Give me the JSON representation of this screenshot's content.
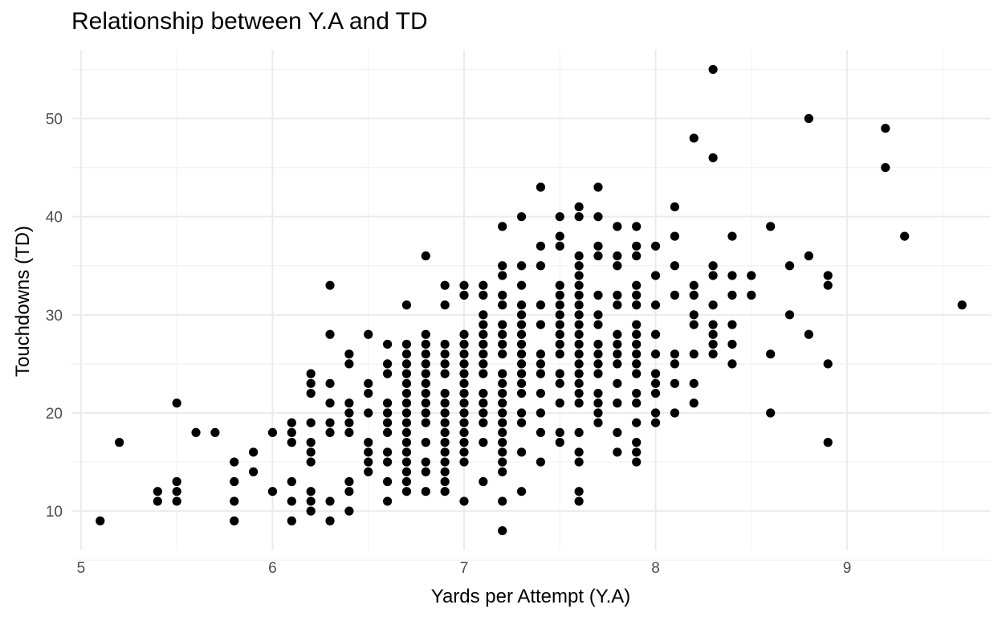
{
  "chart_data": {
    "type": "scatter",
    "title": "Relationship between Y.A and TD",
    "xlabel": "Yards per Attempt (Y.A)",
    "ylabel": "Touchdowns (TD)",
    "xlim": [
      4.95,
      9.75
    ],
    "ylim": [
      6.0,
      57.0
    ],
    "x_ticks": [
      5,
      6,
      7,
      8,
      9
    ],
    "y_ticks": [
      10,
      20,
      30,
      40,
      50
    ],
    "grid": true,
    "legend": "none",
    "points": [
      [
        5.1,
        9
      ],
      [
        5.2,
        17
      ],
      [
        5.4,
        11
      ],
      [
        5.4,
        12
      ],
      [
        5.5,
        11
      ],
      [
        5.5,
        12
      ],
      [
        5.5,
        13
      ],
      [
        5.5,
        21
      ],
      [
        5.6,
        18
      ],
      [
        5.7,
        18
      ],
      [
        5.8,
        9
      ],
      [
        5.8,
        11
      ],
      [
        5.8,
        13
      ],
      [
        5.8,
        15
      ],
      [
        5.9,
        14
      ],
      [
        5.9,
        16
      ],
      [
        6.0,
        12
      ],
      [
        6.0,
        18
      ],
      [
        6.1,
        9
      ],
      [
        6.1,
        11
      ],
      [
        6.1,
        13
      ],
      [
        6.1,
        17
      ],
      [
        6.1,
        18
      ],
      [
        6.1,
        19
      ],
      [
        6.2,
        10
      ],
      [
        6.2,
        11
      ],
      [
        6.2,
        12
      ],
      [
        6.2,
        15
      ],
      [
        6.2,
        16
      ],
      [
        6.2,
        17
      ],
      [
        6.2,
        19
      ],
      [
        6.2,
        22
      ],
      [
        6.2,
        23
      ],
      [
        6.2,
        24
      ],
      [
        6.3,
        9
      ],
      [
        6.3,
        11
      ],
      [
        6.3,
        18
      ],
      [
        6.3,
        19
      ],
      [
        6.3,
        21
      ],
      [
        6.3,
        23
      ],
      [
        6.3,
        28
      ],
      [
        6.3,
        33
      ],
      [
        6.4,
        10
      ],
      [
        6.4,
        12
      ],
      [
        6.4,
        13
      ],
      [
        6.4,
        18
      ],
      [
        6.4,
        19
      ],
      [
        6.4,
        20
      ],
      [
        6.4,
        21
      ],
      [
        6.4,
        25
      ],
      [
        6.4,
        26
      ],
      [
        6.5,
        14
      ],
      [
        6.5,
        15
      ],
      [
        6.5,
        16
      ],
      [
        6.5,
        17
      ],
      [
        6.5,
        20
      ],
      [
        6.5,
        22
      ],
      [
        6.5,
        23
      ],
      [
        6.5,
        28
      ],
      [
        6.6,
        11
      ],
      [
        6.6,
        13
      ],
      [
        6.6,
        15
      ],
      [
        6.6,
        16
      ],
      [
        6.6,
        18
      ],
      [
        6.6,
        19
      ],
      [
        6.6,
        20
      ],
      [
        6.6,
        21
      ],
      [
        6.6,
        24
      ],
      [
        6.6,
        25
      ],
      [
        6.6,
        27
      ],
      [
        6.7,
        12
      ],
      [
        6.7,
        13
      ],
      [
        6.7,
        14
      ],
      [
        6.7,
        15
      ],
      [
        6.7,
        16
      ],
      [
        6.7,
        17
      ],
      [
        6.7,
        18
      ],
      [
        6.7,
        19
      ],
      [
        6.7,
        20
      ],
      [
        6.7,
        21
      ],
      [
        6.7,
        22
      ],
      [
        6.7,
        23
      ],
      [
        6.7,
        24
      ],
      [
        6.7,
        25
      ],
      [
        6.7,
        26
      ],
      [
        6.7,
        27
      ],
      [
        6.7,
        31
      ],
      [
        6.8,
        12
      ],
      [
        6.8,
        14
      ],
      [
        6.8,
        15
      ],
      [
        6.8,
        17
      ],
      [
        6.8,
        19
      ],
      [
        6.8,
        20
      ],
      [
        6.8,
        21
      ],
      [
        6.8,
        22
      ],
      [
        6.8,
        23
      ],
      [
        6.8,
        24
      ],
      [
        6.8,
        25
      ],
      [
        6.8,
        26
      ],
      [
        6.8,
        27
      ],
      [
        6.8,
        28
      ],
      [
        6.8,
        36
      ],
      [
        6.9,
        12
      ],
      [
        6.9,
        13
      ],
      [
        6.9,
        14
      ],
      [
        6.9,
        15
      ],
      [
        6.9,
        16
      ],
      [
        6.9,
        17
      ],
      [
        6.9,
        18
      ],
      [
        6.9,
        19
      ],
      [
        6.9,
        20
      ],
      [
        6.9,
        21
      ],
      [
        6.9,
        22
      ],
      [
        6.9,
        24
      ],
      [
        6.9,
        25
      ],
      [
        6.9,
        26
      ],
      [
        6.9,
        27
      ],
      [
        6.9,
        31
      ],
      [
        6.9,
        33
      ],
      [
        7.0,
        11
      ],
      [
        7.0,
        15
      ],
      [
        7.0,
        16
      ],
      [
        7.0,
        17
      ],
      [
        7.0,
        18
      ],
      [
        7.0,
        19
      ],
      [
        7.0,
        20
      ],
      [
        7.0,
        21
      ],
      [
        7.0,
        22
      ],
      [
        7.0,
        23
      ],
      [
        7.0,
        24
      ],
      [
        7.0,
        25
      ],
      [
        7.0,
        26
      ],
      [
        7.0,
        27
      ],
      [
        7.0,
        28
      ],
      [
        7.0,
        32
      ],
      [
        7.0,
        33
      ],
      [
        7.1,
        13
      ],
      [
        7.1,
        17
      ],
      [
        7.1,
        19
      ],
      [
        7.1,
        20
      ],
      [
        7.1,
        21
      ],
      [
        7.1,
        22
      ],
      [
        7.1,
        24
      ],
      [
        7.1,
        25
      ],
      [
        7.1,
        26
      ],
      [
        7.1,
        27
      ],
      [
        7.1,
        28
      ],
      [
        7.1,
        29
      ],
      [
        7.1,
        30
      ],
      [
        7.1,
        32
      ],
      [
        7.1,
        33
      ],
      [
        7.2,
        8
      ],
      [
        7.2,
        11
      ],
      [
        7.2,
        14
      ],
      [
        7.2,
        15
      ],
      [
        7.2,
        16
      ],
      [
        7.2,
        17
      ],
      [
        7.2,
        18
      ],
      [
        7.2,
        19
      ],
      [
        7.2,
        20
      ],
      [
        7.2,
        21
      ],
      [
        7.2,
        22
      ],
      [
        7.2,
        23
      ],
      [
        7.2,
        24
      ],
      [
        7.2,
        26
      ],
      [
        7.2,
        27
      ],
      [
        7.2,
        28
      ],
      [
        7.2,
        29
      ],
      [
        7.2,
        31
      ],
      [
        7.2,
        32
      ],
      [
        7.2,
        34
      ],
      [
        7.2,
        35
      ],
      [
        7.2,
        39
      ],
      [
        7.3,
        12
      ],
      [
        7.3,
        16
      ],
      [
        7.3,
        19
      ],
      [
        7.3,
        20
      ],
      [
        7.3,
        22
      ],
      [
        7.3,
        23
      ],
      [
        7.3,
        24
      ],
      [
        7.3,
        25
      ],
      [
        7.3,
        26
      ],
      [
        7.3,
        27
      ],
      [
        7.3,
        28
      ],
      [
        7.3,
        29
      ],
      [
        7.3,
        30
      ],
      [
        7.3,
        31
      ],
      [
        7.3,
        33
      ],
      [
        7.3,
        35
      ],
      [
        7.3,
        40
      ],
      [
        7.4,
        15
      ],
      [
        7.4,
        18
      ],
      [
        7.4,
        20
      ],
      [
        7.4,
        22
      ],
      [
        7.4,
        24
      ],
      [
        7.4,
        25
      ],
      [
        7.4,
        26
      ],
      [
        7.4,
        29
      ],
      [
        7.4,
        31
      ],
      [
        7.4,
        35
      ],
      [
        7.4,
        37
      ],
      [
        7.4,
        43
      ],
      [
        7.5,
        17
      ],
      [
        7.5,
        18
      ],
      [
        7.5,
        21
      ],
      [
        7.5,
        23
      ],
      [
        7.5,
        24
      ],
      [
        7.5,
        26
      ],
      [
        7.5,
        27
      ],
      [
        7.5,
        28
      ],
      [
        7.5,
        29
      ],
      [
        7.5,
        30
      ],
      [
        7.5,
        31
      ],
      [
        7.5,
        32
      ],
      [
        7.5,
        33
      ],
      [
        7.5,
        37
      ],
      [
        7.5,
        38
      ],
      [
        7.5,
        40
      ],
      [
        7.6,
        11
      ],
      [
        7.6,
        12
      ],
      [
        7.6,
        15
      ],
      [
        7.6,
        16
      ],
      [
        7.6,
        18
      ],
      [
        7.6,
        21
      ],
      [
        7.6,
        22
      ],
      [
        7.6,
        23
      ],
      [
        7.6,
        24
      ],
      [
        7.6,
        25
      ],
      [
        7.6,
        26
      ],
      [
        7.6,
        27
      ],
      [
        7.6,
        28
      ],
      [
        7.6,
        29
      ],
      [
        7.6,
        30
      ],
      [
        7.6,
        31
      ],
      [
        7.6,
        32
      ],
      [
        7.6,
        33
      ],
      [
        7.6,
        34
      ],
      [
        7.6,
        35
      ],
      [
        7.6,
        36
      ],
      [
        7.6,
        40
      ],
      [
        7.6,
        41
      ],
      [
        7.7,
        19
      ],
      [
        7.7,
        20
      ],
      [
        7.7,
        21
      ],
      [
        7.7,
        22
      ],
      [
        7.7,
        24
      ],
      [
        7.7,
        25
      ],
      [
        7.7,
        26
      ],
      [
        7.7,
        27
      ],
      [
        7.7,
        29
      ],
      [
        7.7,
        30
      ],
      [
        7.7,
        32
      ],
      [
        7.7,
        36
      ],
      [
        7.7,
        37
      ],
      [
        7.7,
        40
      ],
      [
        7.7,
        43
      ],
      [
        7.8,
        16
      ],
      [
        7.8,
        18
      ],
      [
        7.8,
        21
      ],
      [
        7.8,
        23
      ],
      [
        7.8,
        25
      ],
      [
        7.8,
        26
      ],
      [
        7.8,
        27
      ],
      [
        7.8,
        28
      ],
      [
        7.8,
        31
      ],
      [
        7.8,
        32
      ],
      [
        7.8,
        35
      ],
      [
        7.8,
        36
      ],
      [
        7.8,
        39
      ],
      [
        7.9,
        15
      ],
      [
        7.9,
        16
      ],
      [
        7.9,
        17
      ],
      [
        7.9,
        19
      ],
      [
        7.9,
        21
      ],
      [
        7.9,
        22
      ],
      [
        7.9,
        24
      ],
      [
        7.9,
        25
      ],
      [
        7.9,
        26
      ],
      [
        7.9,
        27
      ],
      [
        7.9,
        28
      ],
      [
        7.9,
        29
      ],
      [
        7.9,
        31
      ],
      [
        7.9,
        32
      ],
      [
        7.9,
        33
      ],
      [
        7.9,
        36
      ],
      [
        7.9,
        37
      ],
      [
        7.9,
        39
      ],
      [
        8.0,
        19
      ],
      [
        8.0,
        20
      ],
      [
        8.0,
        22
      ],
      [
        8.0,
        23
      ],
      [
        8.0,
        24
      ],
      [
        8.0,
        26
      ],
      [
        8.0,
        28
      ],
      [
        8.0,
        31
      ],
      [
        8.0,
        34
      ],
      [
        8.0,
        37
      ],
      [
        8.1,
        20
      ],
      [
        8.1,
        23
      ],
      [
        8.1,
        25
      ],
      [
        8.1,
        26
      ],
      [
        8.1,
        32
      ],
      [
        8.1,
        35
      ],
      [
        8.1,
        38
      ],
      [
        8.1,
        41
      ],
      [
        8.2,
        21
      ],
      [
        8.2,
        23
      ],
      [
        8.2,
        26
      ],
      [
        8.2,
        29
      ],
      [
        8.2,
        30
      ],
      [
        8.2,
        32
      ],
      [
        8.2,
        33
      ],
      [
        8.2,
        48
      ],
      [
        8.3,
        26
      ],
      [
        8.3,
        27
      ],
      [
        8.3,
        28
      ],
      [
        8.3,
        29
      ],
      [
        8.3,
        31
      ],
      [
        8.3,
        34
      ],
      [
        8.3,
        35
      ],
      [
        8.3,
        46
      ],
      [
        8.3,
        55
      ],
      [
        8.4,
        25
      ],
      [
        8.4,
        27
      ],
      [
        8.4,
        29
      ],
      [
        8.4,
        32
      ],
      [
        8.4,
        34
      ],
      [
        8.4,
        38
      ],
      [
        8.5,
        32
      ],
      [
        8.5,
        34
      ],
      [
        8.6,
        20
      ],
      [
        8.6,
        26
      ],
      [
        8.6,
        39
      ],
      [
        8.7,
        30
      ],
      [
        8.7,
        35
      ],
      [
        8.8,
        28
      ],
      [
        8.8,
        36
      ],
      [
        8.8,
        50
      ],
      [
        8.9,
        17
      ],
      [
        8.9,
        25
      ],
      [
        8.9,
        33
      ],
      [
        8.9,
        34
      ],
      [
        9.2,
        45
      ],
      [
        9.2,
        49
      ],
      [
        9.3,
        38
      ],
      [
        9.6,
        31
      ]
    ]
  }
}
